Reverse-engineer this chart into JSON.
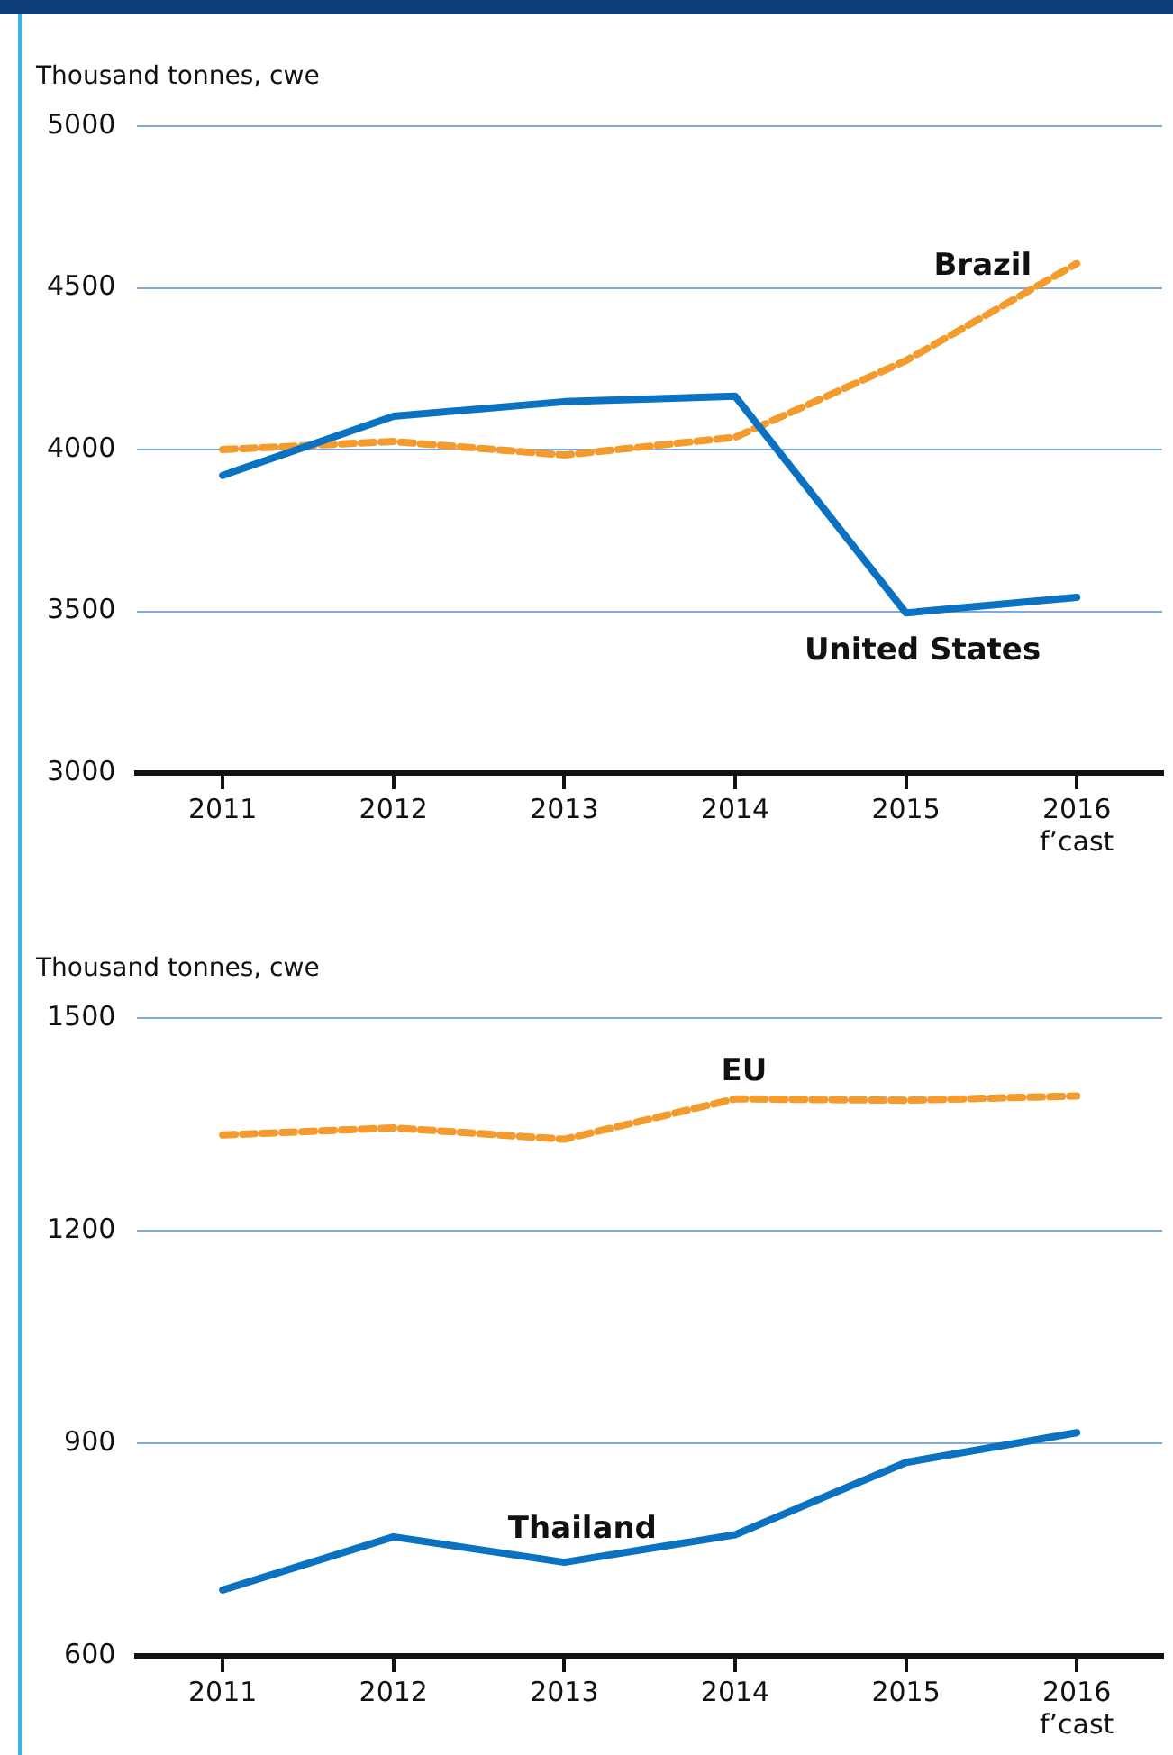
{
  "chart_data": [
    {
      "type": "line",
      "ylabel": "Thousand tonnes, cwe",
      "categories": [
        "2011",
        "2012",
        "2013",
        "2014",
        "2015",
        "2016\nf’cast"
      ],
      "ylim": [
        3000,
        5000
      ],
      "yticks": [
        3000,
        3500,
        4000,
        4500,
        5000
      ],
      "grid": "y",
      "legend": false,
      "marker": "none",
      "series": [
        {
          "name": "United States",
          "color": "#0a72c0",
          "line_style": "solid",
          "values": [
            3920,
            4103,
            4148,
            4165,
            3495,
            3543
          ]
        },
        {
          "name": "Brazil",
          "color": "#f39b2c",
          "line_style": "dashed",
          "values": [
            4000,
            4025,
            3983,
            4038,
            4275,
            4575
          ]
        }
      ]
    },
    {
      "type": "line",
      "ylabel": "Thousand tonnes, cwe",
      "categories": [
        "2011",
        "2012",
        "2013",
        "2014",
        "2015",
        "2016\nf’cast"
      ],
      "ylim": [
        600,
        1500
      ],
      "yticks": [
        600,
        900,
        1200,
        1500
      ],
      "grid": "y",
      "legend": false,
      "marker": "none",
      "series": [
        {
          "name": "Thailand",
          "color": "#0a72c0",
          "line_style": "solid",
          "values": [
            693,
            768,
            732,
            771,
            873,
            915
          ]
        },
        {
          "name": "EU",
          "color": "#f39b2c",
          "line_style": "dashed",
          "values": [
            1335,
            1345,
            1329,
            1386,
            1384,
            1390
          ]
        }
      ]
    }
  ]
}
